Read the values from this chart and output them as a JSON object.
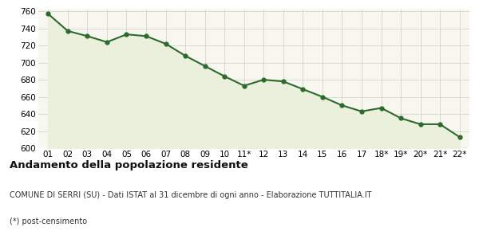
{
  "x_labels": [
    "01",
    "02",
    "03",
    "04",
    "05",
    "06",
    "07",
    "08",
    "09",
    "10",
    "11*",
    "12",
    "13",
    "14",
    "15",
    "16",
    "17",
    "18*",
    "19*",
    "20*",
    "21*",
    "22*"
  ],
  "y_values": [
    757,
    737,
    731,
    724,
    733,
    731,
    722,
    708,
    696,
    684,
    673,
    680,
    678,
    669,
    660,
    650,
    643,
    647,
    635,
    628,
    628,
    613
  ],
  "line_color": "#2d6a2d",
  "fill_color": "#eaf0dc",
  "marker": "o",
  "marker_size": 3.5,
  "line_width": 1.5,
  "ylim": [
    600,
    762
  ],
  "yticks": [
    600,
    620,
    640,
    660,
    680,
    700,
    720,
    740,
    760
  ],
  "title": "Andamento della popolazione residente",
  "subtitle": "COMUNE DI SERRI (SU) - Dati ISTAT al 31 dicembre di ogni anno - Elaborazione TUTTITALIA.IT",
  "footnote": "(*) post-censimento",
  "background_color": "#ffffff",
  "plot_bg_color": "#f7f7f0",
  "grid_color": "#d0d0c8",
  "title_fontsize": 9.5,
  "subtitle_fontsize": 7,
  "footnote_fontsize": 7,
  "tick_fontsize": 7.5
}
